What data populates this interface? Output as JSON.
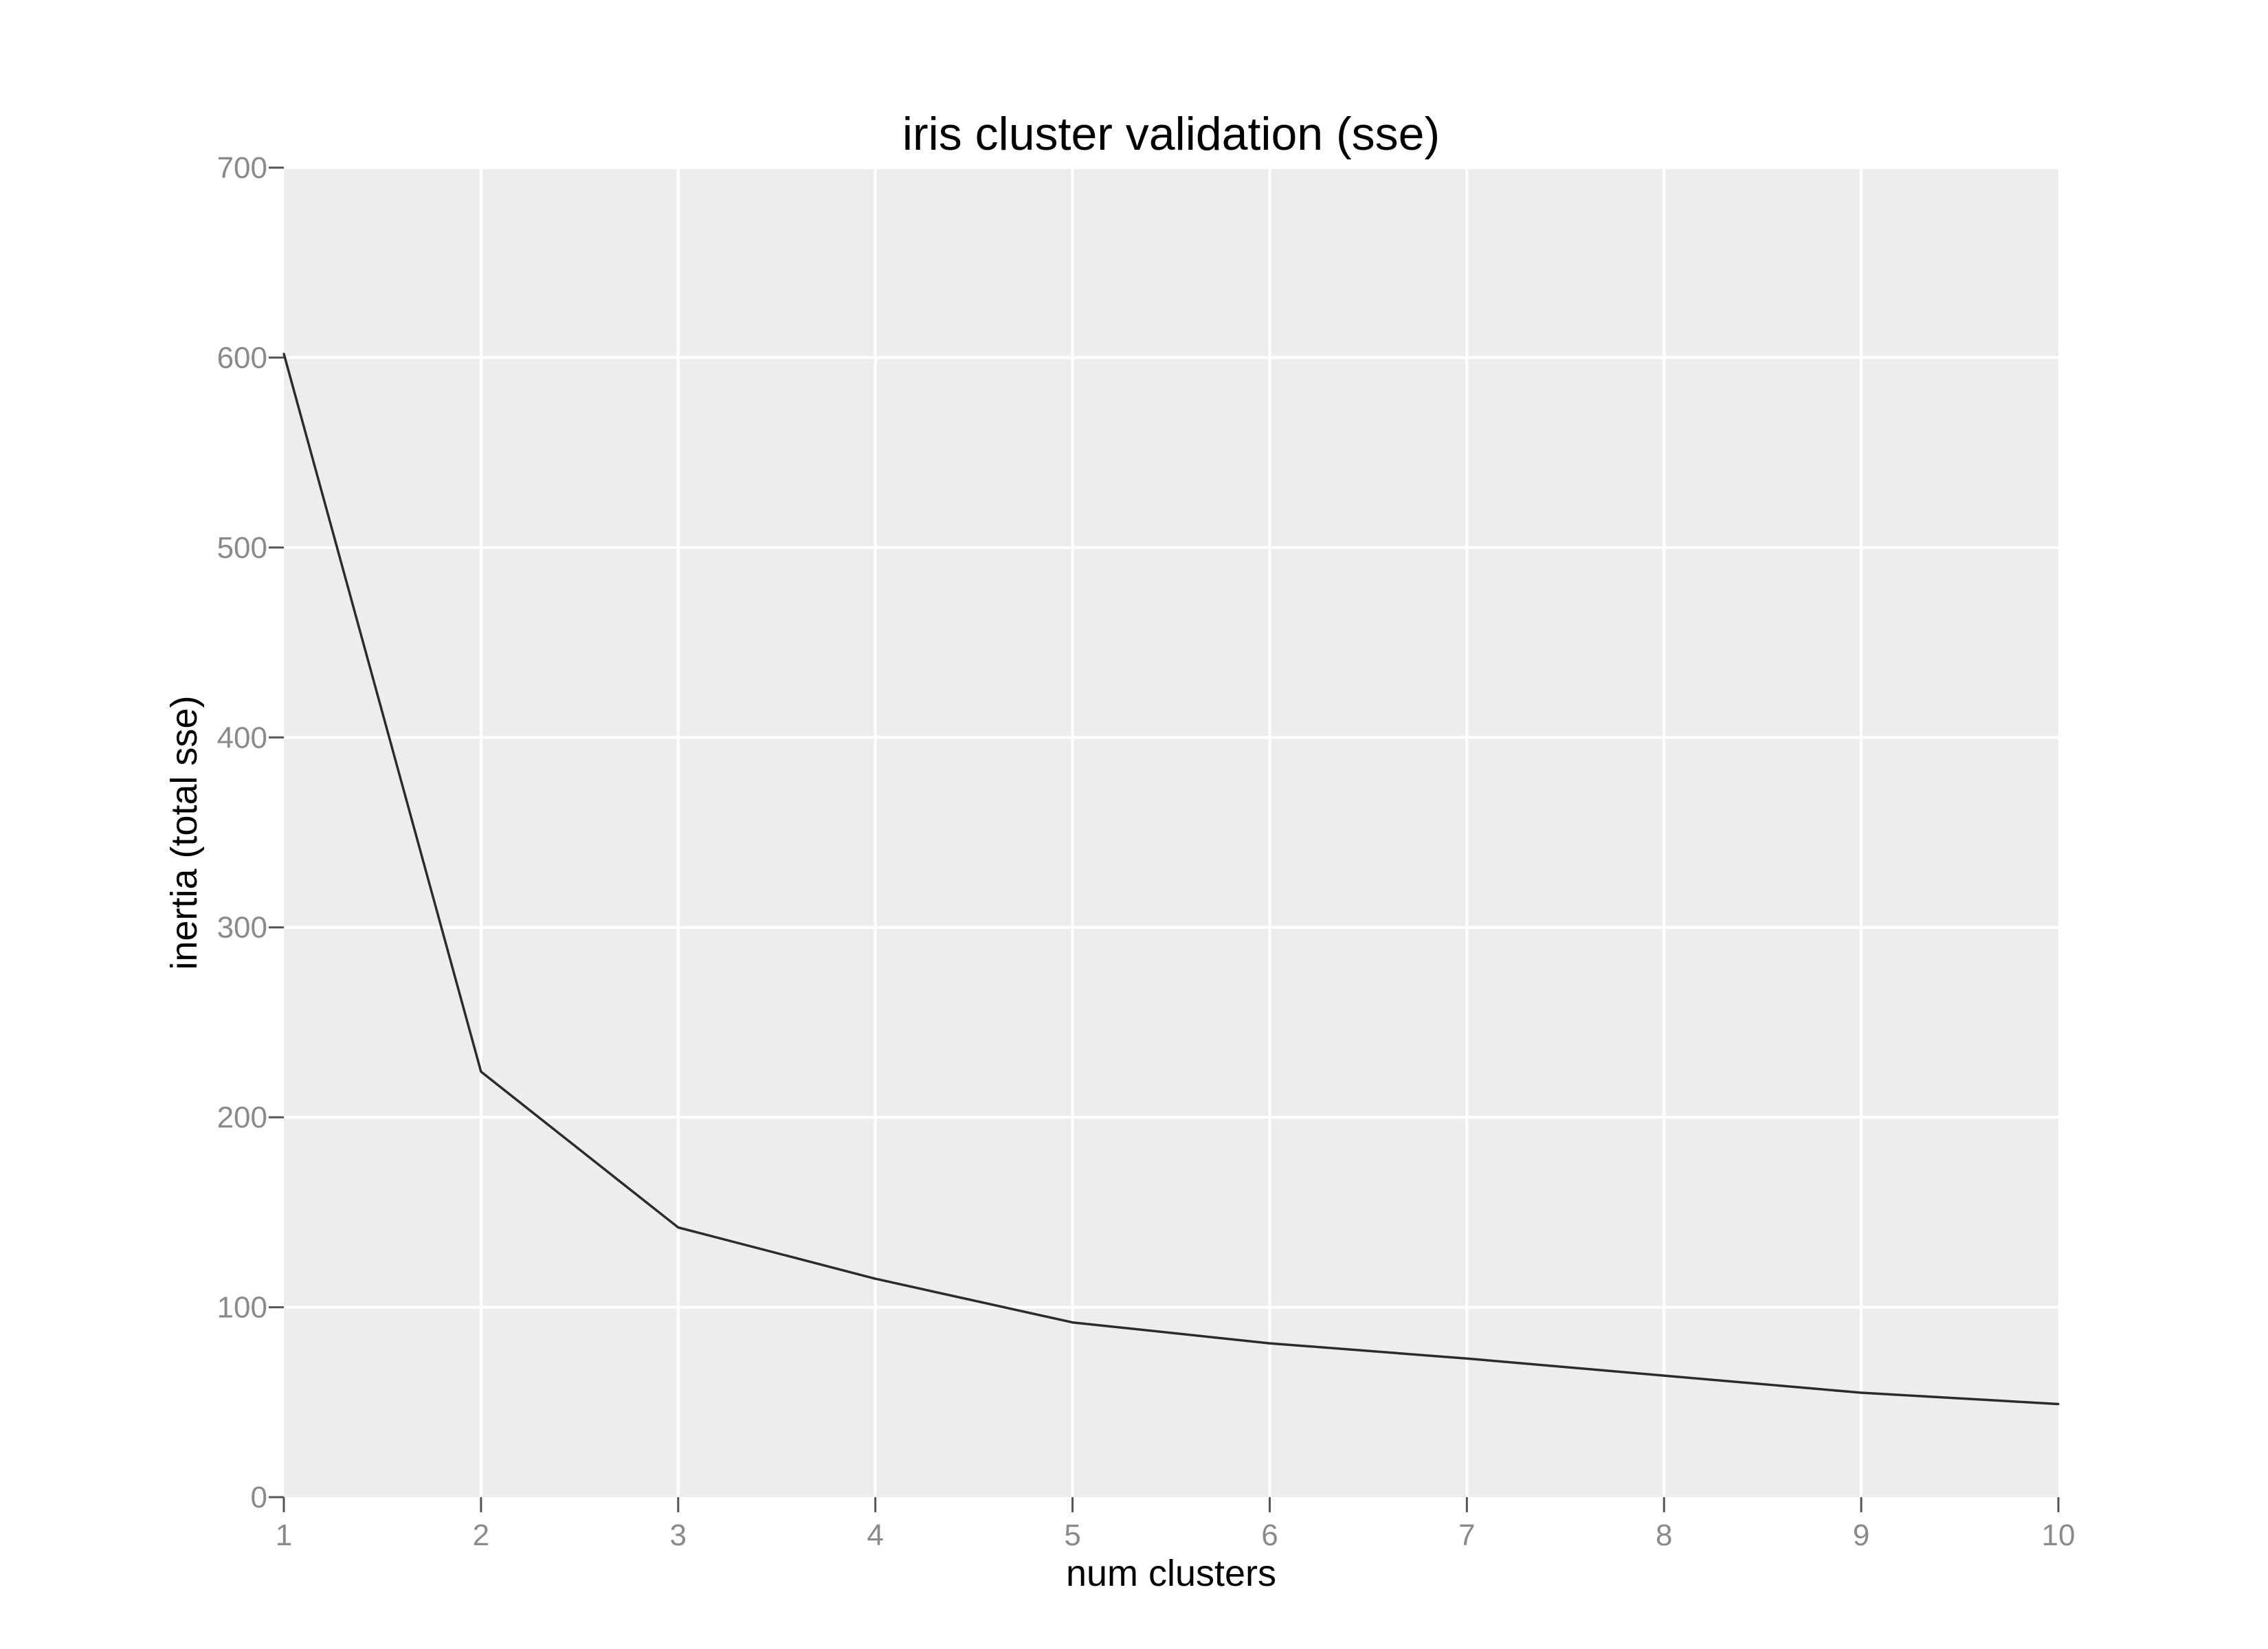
{
  "chart_data": {
    "type": "line",
    "title": "iris cluster validation (sse)",
    "xlabel": "num clusters",
    "ylabel": "inertia (total sse)",
    "x": [
      1,
      2,
      3,
      4,
      5,
      6,
      7,
      8,
      9,
      10
    ],
    "series": [
      {
        "values": [
          602,
          224,
          142,
          115,
          92,
          81,
          73,
          64,
          55,
          49
        ]
      }
    ],
    "xlim": [
      1,
      10
    ],
    "ylim": [
      0,
      700
    ],
    "xticks": [
      "1",
      "2",
      "3",
      "4",
      "5",
      "6",
      "7",
      "8",
      "9",
      "10"
    ],
    "yticks": [
      "0",
      "100",
      "200",
      "300",
      "400",
      "500",
      "600",
      "700"
    ],
    "grid": true,
    "colors": {
      "background": "#ededed",
      "line": "#2b2b2b",
      "grid": "#ffffff",
      "tick_text": "#8a8a8a"
    }
  }
}
